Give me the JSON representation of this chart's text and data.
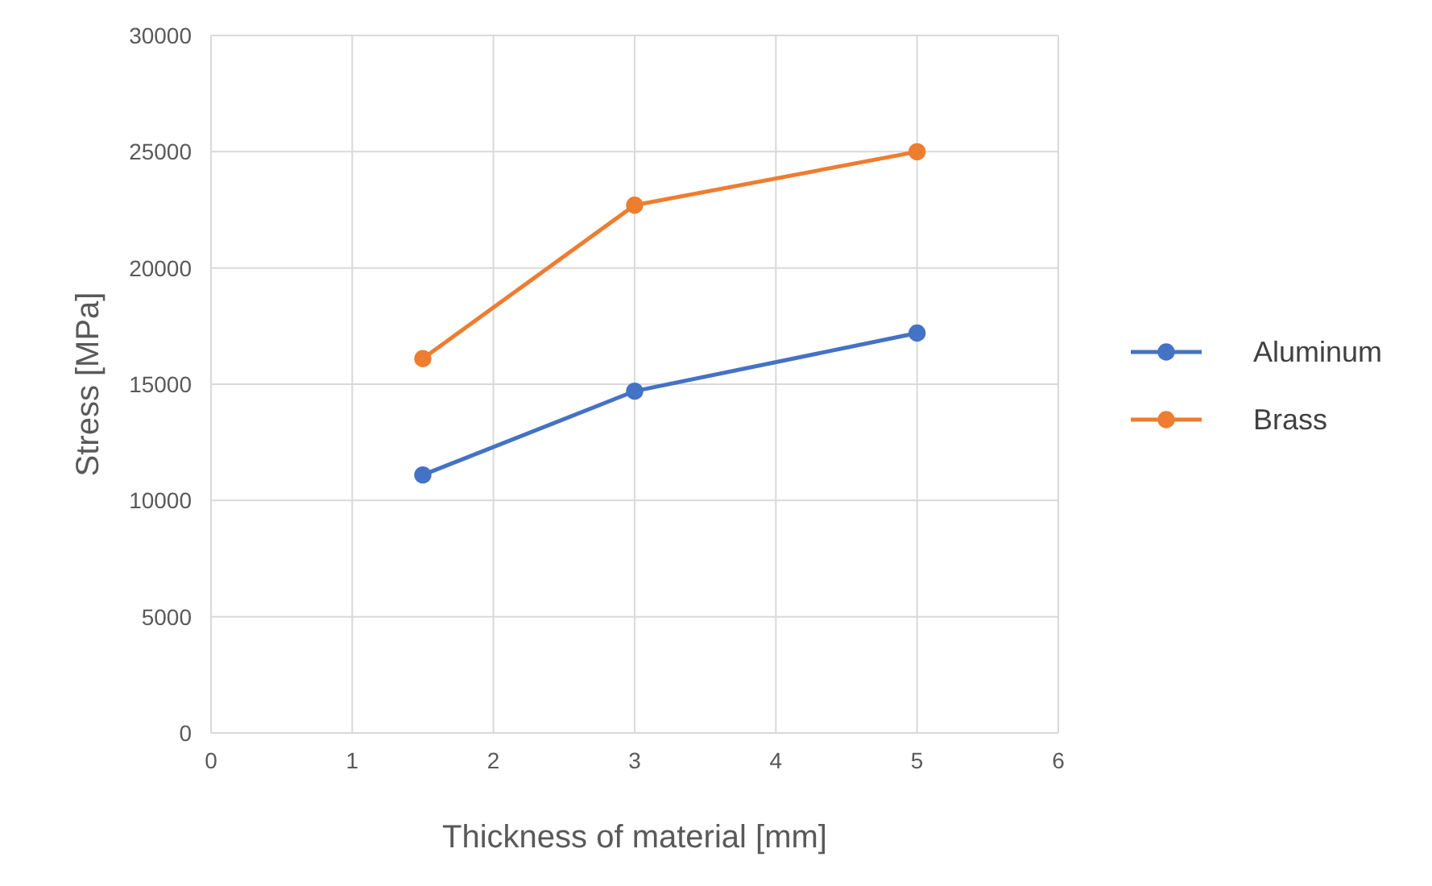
{
  "chart_data": {
    "type": "line",
    "xlabel": "Thickness of material [mm]",
    "ylabel": "Stress [MPa]",
    "xlim": [
      0,
      6
    ],
    "xticks": [
      0,
      1,
      2,
      3,
      4,
      5,
      6
    ],
    "ylim": [
      0,
      30000
    ],
    "yticks": [
      0,
      5000,
      10000,
      15000,
      20000,
      25000,
      30000
    ],
    "grid": true,
    "legend": "right",
    "marker": "circle",
    "line_style": "solid",
    "series": [
      {
        "name": "Aluminum",
        "color": "#4472c4",
        "x": [
          1.5,
          3,
          5
        ],
        "values": [
          11100,
          14700,
          17200
        ]
      },
      {
        "name": "Brass",
        "color": "#ed7d31",
        "x": [
          1.5,
          3,
          5
        ],
        "values": [
          16100,
          22700,
          25000
        ]
      }
    ]
  }
}
